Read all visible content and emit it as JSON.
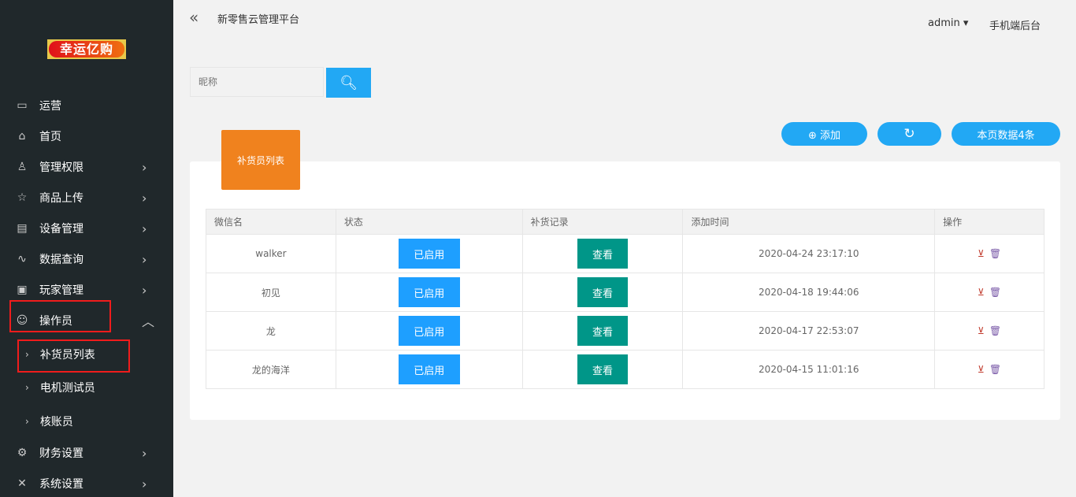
{
  "logo": "幸运亿购",
  "sidebar": {
    "items": [
      {
        "label": "运营",
        "icon": "presentation-icon"
      },
      {
        "label": "首页",
        "icon": "home-icon"
      },
      {
        "label": "管理权限",
        "icon": "users-icon"
      },
      {
        "label": "商品上传",
        "icon": "star-icon"
      },
      {
        "label": "设备管理",
        "icon": "window-icon"
      },
      {
        "label": "数据查询",
        "icon": "pulse-icon"
      },
      {
        "label": "玩家管理",
        "icon": "image-icon"
      },
      {
        "label": "操作员",
        "icon": "smile-icon"
      },
      {
        "label": "财务设置",
        "icon": "gear-icon"
      },
      {
        "label": "系统设置",
        "icon": "tools-icon"
      }
    ],
    "subitems": [
      {
        "label": "补货员列表"
      },
      {
        "label": "电机测试员"
      },
      {
        "label": "核账员"
      }
    ]
  },
  "header": {
    "title": "新零售云管理平台",
    "user": "admin",
    "mobile": "手机端后台"
  },
  "search": {
    "placeholder": "昵称"
  },
  "toolbar": {
    "add": "添加",
    "page_count": "本页数据4条"
  },
  "tab": "补货员列表",
  "table": {
    "headers": [
      "微信名",
      "状态",
      "补货记录",
      "添加时间",
      "操作"
    ],
    "rows": [
      {
        "name": "walker",
        "status": "已启用",
        "record": "查看",
        "time": "2020-04-24 23:17:10"
      },
      {
        "name": "初见",
        "status": "已启用",
        "record": "查看",
        "time": "2020-04-18 19:44:06"
      },
      {
        "name": "龙",
        "status": "已启用",
        "record": "查看",
        "time": "2020-04-17 22:53:07"
      },
      {
        "name": "龙的海洋",
        "status": "已启用",
        "record": "查看",
        "time": "2020-04-15 11:01:16"
      }
    ]
  },
  "colors": {
    "sidebar": "#20282b",
    "primary": "#1e9fff",
    "teal": "#009688",
    "orange": "#f0821e",
    "highlight": "#f01c1c"
  }
}
